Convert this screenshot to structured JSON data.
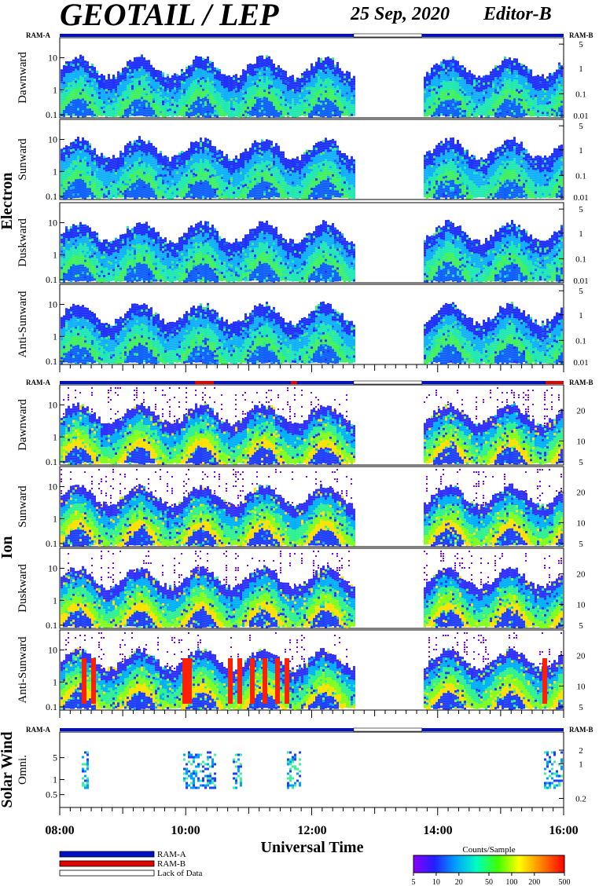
{
  "header": {
    "title": "GEOTAIL / LEP",
    "date": "25 Sep, 2020",
    "editor": "Editor-B"
  },
  "chart_data": {
    "type": "heatmap",
    "x_axis": {
      "label": "Universal Time",
      "range": [
        "08:00",
        "16:00"
      ],
      "ticks": [
        "08:00",
        "10:00",
        "12:00",
        "14:00",
        "16:00"
      ]
    },
    "colorbar": {
      "label": "Counts/Sample",
      "ticks": [
        "5",
        "10",
        "20",
        "50",
        "100",
        "200",
        "500"
      ],
      "colors": [
        "#8a00ff",
        "#2020ff",
        "#00a0ff",
        "#00ffc0",
        "#40ff00",
        "#ffff00",
        "#ff8000",
        "#ff0000"
      ]
    },
    "legend": [
      {
        "label": "RAM-A",
        "color": "#0010c8"
      },
      {
        "label": "RAM-B",
        "color": "#e00000"
      },
      {
        "label": "Lack of Data",
        "color": "#ffffff"
      }
    ],
    "status_labels": {
      "left": "RAM-A",
      "right": "RAM-B"
    },
    "data_gap": [
      "12:40",
      "13:45"
    ],
    "groups": [
      {
        "name": "Electron",
        "left_ticks": [
          "10",
          "1",
          "0.1"
        ],
        "right_ticks": [
          "5",
          "1",
          "0.1",
          "0.01"
        ],
        "panels": [
          "Dawnward",
          "Sunward",
          "Duskward",
          "Anti-Sunward"
        ]
      },
      {
        "name": "Ion",
        "left_ticks": [
          "10",
          "1",
          "0.1"
        ],
        "right_ticks": [
          "20",
          "10",
          "5"
        ],
        "panels": [
          "Dawnward",
          "Sunward",
          "Duskward",
          "Anti-Sunward"
        ]
      },
      {
        "name": "Solar Wind",
        "left_ticks": [
          "5",
          "1",
          "0.5"
        ],
        "right_ticks": [
          "2",
          "1",
          "0.2"
        ],
        "panels": [
          "Omni."
        ]
      }
    ]
  }
}
